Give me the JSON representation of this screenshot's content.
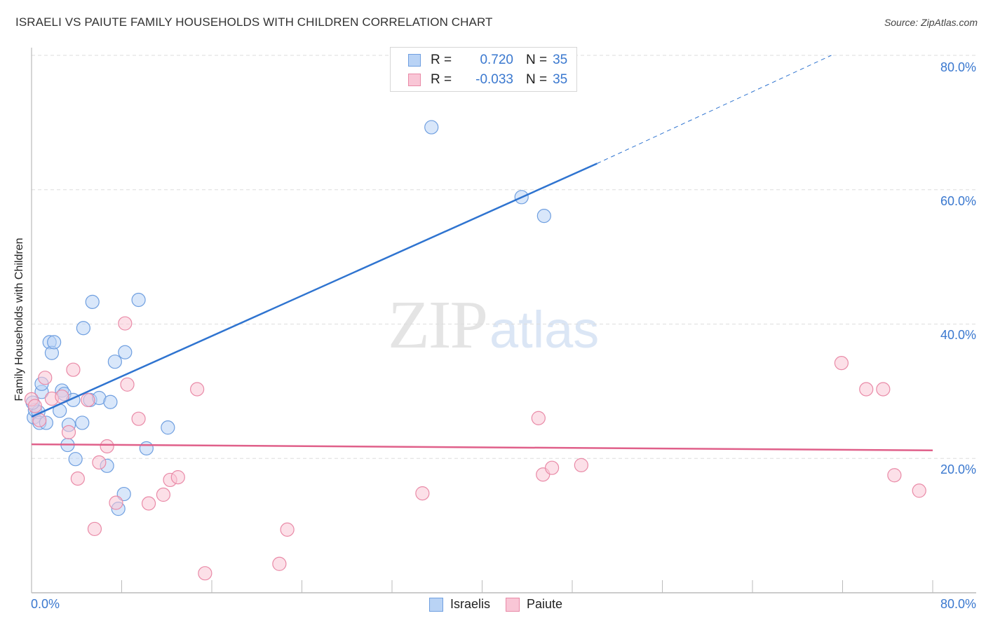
{
  "header": {
    "title": "ISRAELI VS PAIUTE FAMILY HOUSEHOLDS WITH CHILDREN CORRELATION CHART",
    "source": "Source: ZipAtlas.com"
  },
  "watermark": {
    "zip": "ZIP",
    "atlas": "atlas"
  },
  "legend_top": {
    "rows": [
      {
        "series": "Israelis",
        "r_label": "R =",
        "r_value": "0.720",
        "n_label": "N =",
        "n_value": "35",
        "swatch_fill": "#b9d3f5",
        "swatch_border": "#6f9fe0"
      },
      {
        "series": "Paiute",
        "r_label": "R =",
        "r_value": "-0.033",
        "n_label": "N =",
        "n_value": "35",
        "swatch_fill": "#f9c6d6",
        "swatch_border": "#e98aa7"
      }
    ]
  },
  "legend_bottom": {
    "items": [
      {
        "label": "Israelis",
        "swatch_fill": "#b9d3f5",
        "swatch_border": "#6f9fe0"
      },
      {
        "label": "Paiute",
        "swatch_fill": "#f9c6d6",
        "swatch_border": "#e98aa7"
      }
    ]
  },
  "axes": {
    "x_min_label": "0.0%",
    "x_max_label": "80.0%",
    "y_tick_labels": [
      "80.0%",
      "60.0%",
      "40.0%",
      "20.0%"
    ]
  },
  "colors": {
    "israelis_line": "#2f74d0",
    "paiute_line": "#e0608a",
    "tick_label": "#3a78cf",
    "grid": "#dddddd"
  },
  "chart_data": {
    "type": "scatter",
    "title": "ISRAELI VS PAIUTE FAMILY HOUSEHOLDS WITH CHILDREN CORRELATION CHART",
    "xlabel": "",
    "ylabel": "Family Households with Children",
    "xlim": [
      0,
      80
    ],
    "ylim": [
      0,
      80
    ],
    "x_ticks": [
      "0.0%",
      "80.0%"
    ],
    "y_ticks": [
      "20.0%",
      "40.0%",
      "60.0%",
      "80.0%"
    ],
    "grid": true,
    "legend_position": "bottom-center",
    "series": [
      {
        "name": "Israelis",
        "color": "#6f9fe0",
        "r": 0.72,
        "n": 35,
        "trendline": {
          "x": [
            0,
            50.2
          ],
          "y": [
            26.2,
            63.9
          ],
          "dashed_extension_to": [
            71,
            80
          ]
        },
        "points": [
          [
            0.2,
            26.1
          ],
          [
            0.3,
            27.2
          ],
          [
            0.6,
            26.9
          ],
          [
            0.1,
            28.3
          ],
          [
            0.7,
            25.3
          ],
          [
            0.9,
            29.9
          ],
          [
            1.3,
            25.3
          ],
          [
            1.6,
            37.3
          ],
          [
            1.8,
            35.7
          ],
          [
            2.0,
            37.3
          ],
          [
            0.9,
            31.1
          ],
          [
            2.5,
            27.1
          ],
          [
            2.7,
            30.1
          ],
          [
            2.9,
            29.6
          ],
          [
            3.2,
            22.0
          ],
          [
            3.3,
            25.0
          ],
          [
            3.7,
            28.7
          ],
          [
            3.9,
            19.9
          ],
          [
            4.5,
            25.3
          ],
          [
            4.6,
            39.4
          ],
          [
            5.2,
            28.7
          ],
          [
            5.4,
            43.3
          ],
          [
            6.0,
            29.0
          ],
          [
            6.7,
            18.9
          ],
          [
            7.0,
            28.4
          ],
          [
            7.4,
            34.4
          ],
          [
            7.7,
            12.5
          ],
          [
            8.2,
            14.7
          ],
          [
            8.3,
            35.8
          ],
          [
            9.5,
            43.6
          ],
          [
            10.2,
            21.5
          ],
          [
            12.1,
            24.6
          ],
          [
            35.5,
            69.3
          ],
          [
            43.5,
            58.9
          ],
          [
            45.5,
            56.1
          ]
        ]
      },
      {
        "name": "Paiute",
        "color": "#e98aa7",
        "r": -0.033,
        "n": 35,
        "trendline": {
          "x": [
            0,
            80
          ],
          "y": [
            22.1,
            21.2
          ]
        },
        "points": [
          [
            0.0,
            28.8
          ],
          [
            0.3,
            27.8
          ],
          [
            0.7,
            25.7
          ],
          [
            1.2,
            32.0
          ],
          [
            1.8,
            28.9
          ],
          [
            2.7,
            29.2
          ],
          [
            3.3,
            23.9
          ],
          [
            3.7,
            33.2
          ],
          [
            4.1,
            17.0
          ],
          [
            5.0,
            28.7
          ],
          [
            5.6,
            9.5
          ],
          [
            6.0,
            19.4
          ],
          [
            6.7,
            21.8
          ],
          [
            7.5,
            13.4
          ],
          [
            8.3,
            40.1
          ],
          [
            8.5,
            31.0
          ],
          [
            9.5,
            25.9
          ],
          [
            10.4,
            13.3
          ],
          [
            11.7,
            14.6
          ],
          [
            12.3,
            16.8
          ],
          [
            13.0,
            17.2
          ],
          [
            14.7,
            30.3
          ],
          [
            15.4,
            2.9
          ],
          [
            22.0,
            4.3
          ],
          [
            22.7,
            9.4
          ],
          [
            34.7,
            14.8
          ],
          [
            45.0,
            26.0
          ],
          [
            45.4,
            17.6
          ],
          [
            46.2,
            18.6
          ],
          [
            48.8,
            19.0
          ],
          [
            71.9,
            34.2
          ],
          [
            74.1,
            30.3
          ],
          [
            75.6,
            30.3
          ],
          [
            76.6,
            17.5
          ],
          [
            78.8,
            15.2
          ]
        ]
      }
    ]
  }
}
